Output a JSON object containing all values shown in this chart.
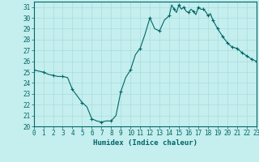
{
  "title": "",
  "xlabel": "Humidex (Indice chaleur)",
  "ylabel": "",
  "bg_color": "#c5eeee",
  "line_color": "#006666",
  "marker_color": "#006666",
  "grid_color": "#a8dddd",
  "ylim": [
    20,
    31.5
  ],
  "xlim": [
    0,
    23
  ],
  "yticks": [
    20,
    21,
    22,
    23,
    24,
    25,
    26,
    27,
    28,
    29,
    30,
    31
  ],
  "xticks": [
    0,
    1,
    2,
    3,
    4,
    5,
    6,
    7,
    8,
    9,
    10,
    11,
    12,
    13,
    14,
    15,
    16,
    17,
    18,
    19,
    20,
    21,
    22,
    23
  ],
  "x": [
    0,
    0.5,
    1,
    1.5,
    2,
    2.5,
    3,
    3.5,
    4,
    4.5,
    5,
    5.5,
    6,
    6.5,
    7,
    7.5,
    8,
    8.5,
    9,
    9.5,
    10,
    10.5,
    11,
    11.5,
    12,
    12.5,
    13,
    13.5,
    14,
    14.25,
    14.5,
    14.75,
    15,
    15.25,
    15.5,
    15.75,
    16,
    16.25,
    16.5,
    16.75,
    17,
    17.25,
    17.5,
    17.75,
    18,
    18.25,
    18.5,
    19,
    19.5,
    20,
    20.5,
    21,
    21.5,
    22,
    22.5,
    23
  ],
  "y": [
    25.2,
    25.1,
    25.0,
    24.8,
    24.7,
    24.6,
    24.6,
    24.5,
    23.4,
    22.8,
    22.2,
    21.8,
    20.7,
    20.5,
    20.4,
    20.5,
    20.5,
    21.0,
    23.2,
    24.5,
    25.2,
    26.6,
    27.2,
    28.5,
    30.0,
    29.0,
    28.8,
    29.8,
    30.2,
    31.2,
    30.8,
    30.5,
    31.2,
    30.8,
    31.0,
    30.6,
    30.5,
    30.8,
    30.6,
    30.3,
    31.0,
    30.8,
    30.8,
    30.6,
    30.2,
    30.4,
    29.8,
    29.0,
    28.3,
    27.7,
    27.3,
    27.2,
    26.8,
    26.5,
    26.2,
    26.0
  ],
  "marker_x": [
    0,
    1,
    2,
    3,
    4,
    5,
    6,
    7,
    8,
    9,
    10,
    11,
    12,
    13,
    14,
    14.5,
    15,
    15.5,
    16,
    16.5,
    17,
    17.5,
    18,
    18.5,
    19,
    19.5,
    20,
    20.5,
    21,
    21.5,
    22,
    22.5,
    23
  ],
  "marker_y": [
    25.2,
    25.0,
    24.7,
    24.6,
    23.4,
    22.2,
    20.7,
    20.4,
    20.5,
    23.2,
    25.2,
    27.2,
    30.0,
    28.8,
    30.2,
    30.8,
    31.2,
    31.0,
    30.5,
    30.6,
    31.0,
    30.8,
    30.2,
    29.8,
    29.0,
    28.3,
    27.7,
    27.3,
    27.2,
    26.8,
    26.5,
    26.2,
    26.0
  ]
}
